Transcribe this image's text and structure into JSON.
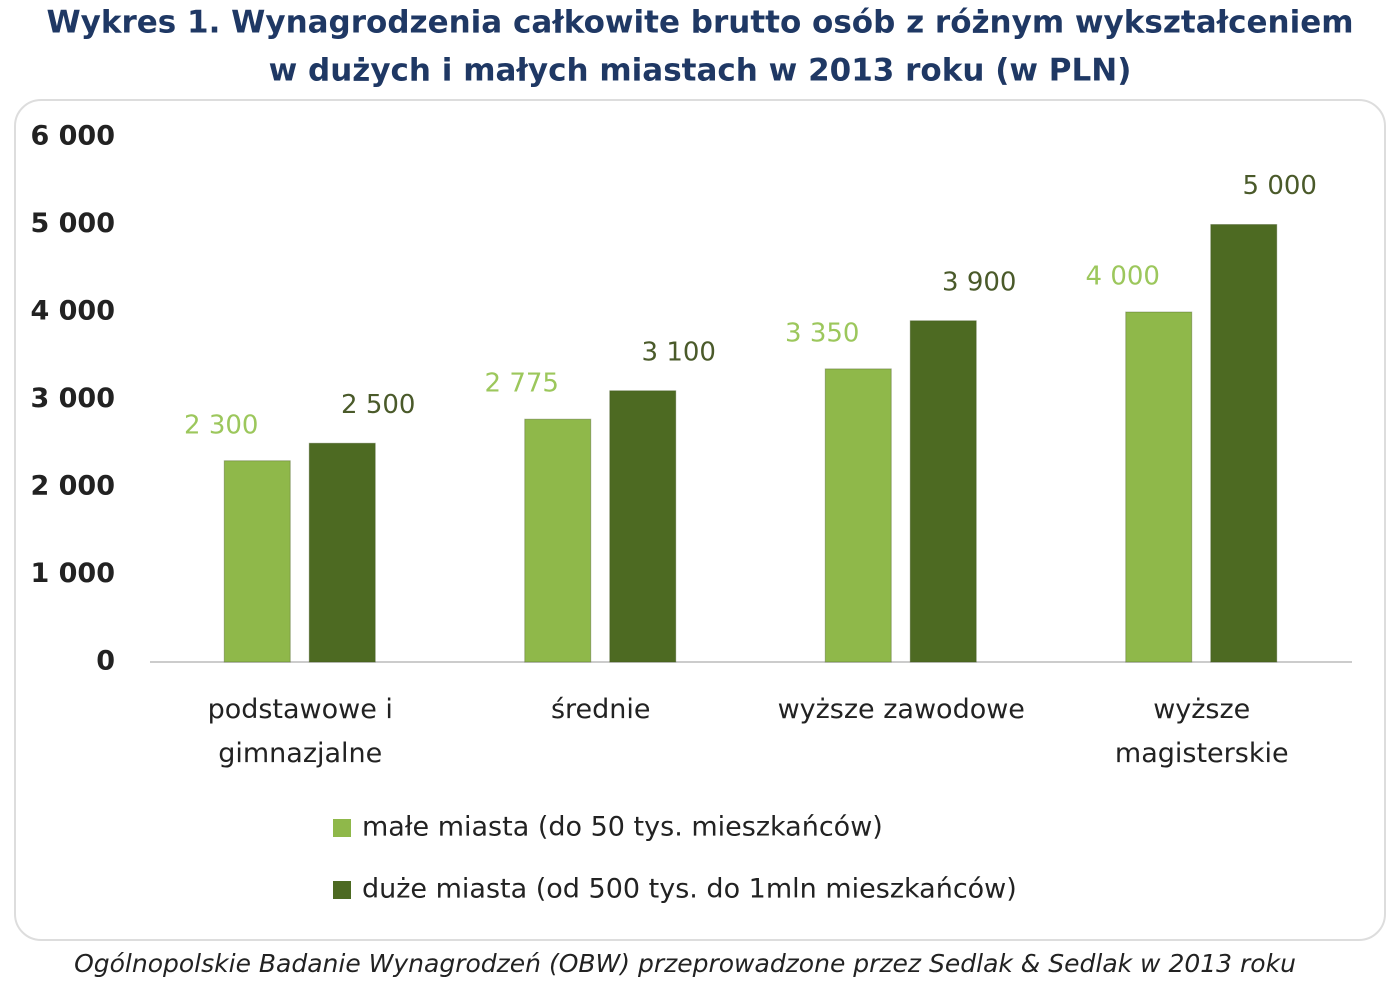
{
  "chart_data": {
    "type": "bar",
    "title": [
      "Wykres 1. Wynagrodzenia całkowite brutto osób z różnym wykształceniem",
      "w dużych i małych miastach w 2013 roku (w PLN)"
    ],
    "categories": [
      "podstawowe i gimnazjalne",
      "średnie",
      "wyższe zawodowe",
      "wyższe magisterskie"
    ],
    "series": [
      {
        "name": "małe miasta (do 50 tys. mieszkańców)",
        "color": "#8fb84a",
        "values": [
          2300,
          2775,
          3350,
          4000
        ],
        "value_labels": [
          "2 300",
          "2 775",
          "3 350",
          "4 000"
        ]
      },
      {
        "name": "duże miasta (od 500 tys. do 1mln mieszkańców)",
        "color": "#4d6a22",
        "values": [
          2500,
          3100,
          3900,
          5000
        ],
        "value_labels": [
          "2 500",
          "3 100",
          "3 900",
          "5 000"
        ]
      }
    ],
    "ylim": [
      0,
      6000
    ],
    "yticks": [
      0,
      {
        "value": 1000,
        "label": "1 000"
      },
      {
        "value": 2000,
        "label": "2 000"
      },
      {
        "value": 3000,
        "label": "3 000"
      },
      {
        "value": 4000,
        "label": "4 000"
      },
      {
        "value": 5000,
        "label": "5 000"
      },
      {
        "value": 6000,
        "label": "6 000"
      }
    ],
    "legend": "bottom",
    "source": "Ogólnopolskie Badanie Wynagrodzeń (OBW) przeprowadzone przez Sedlak & Sedlak w 2013 roku"
  }
}
